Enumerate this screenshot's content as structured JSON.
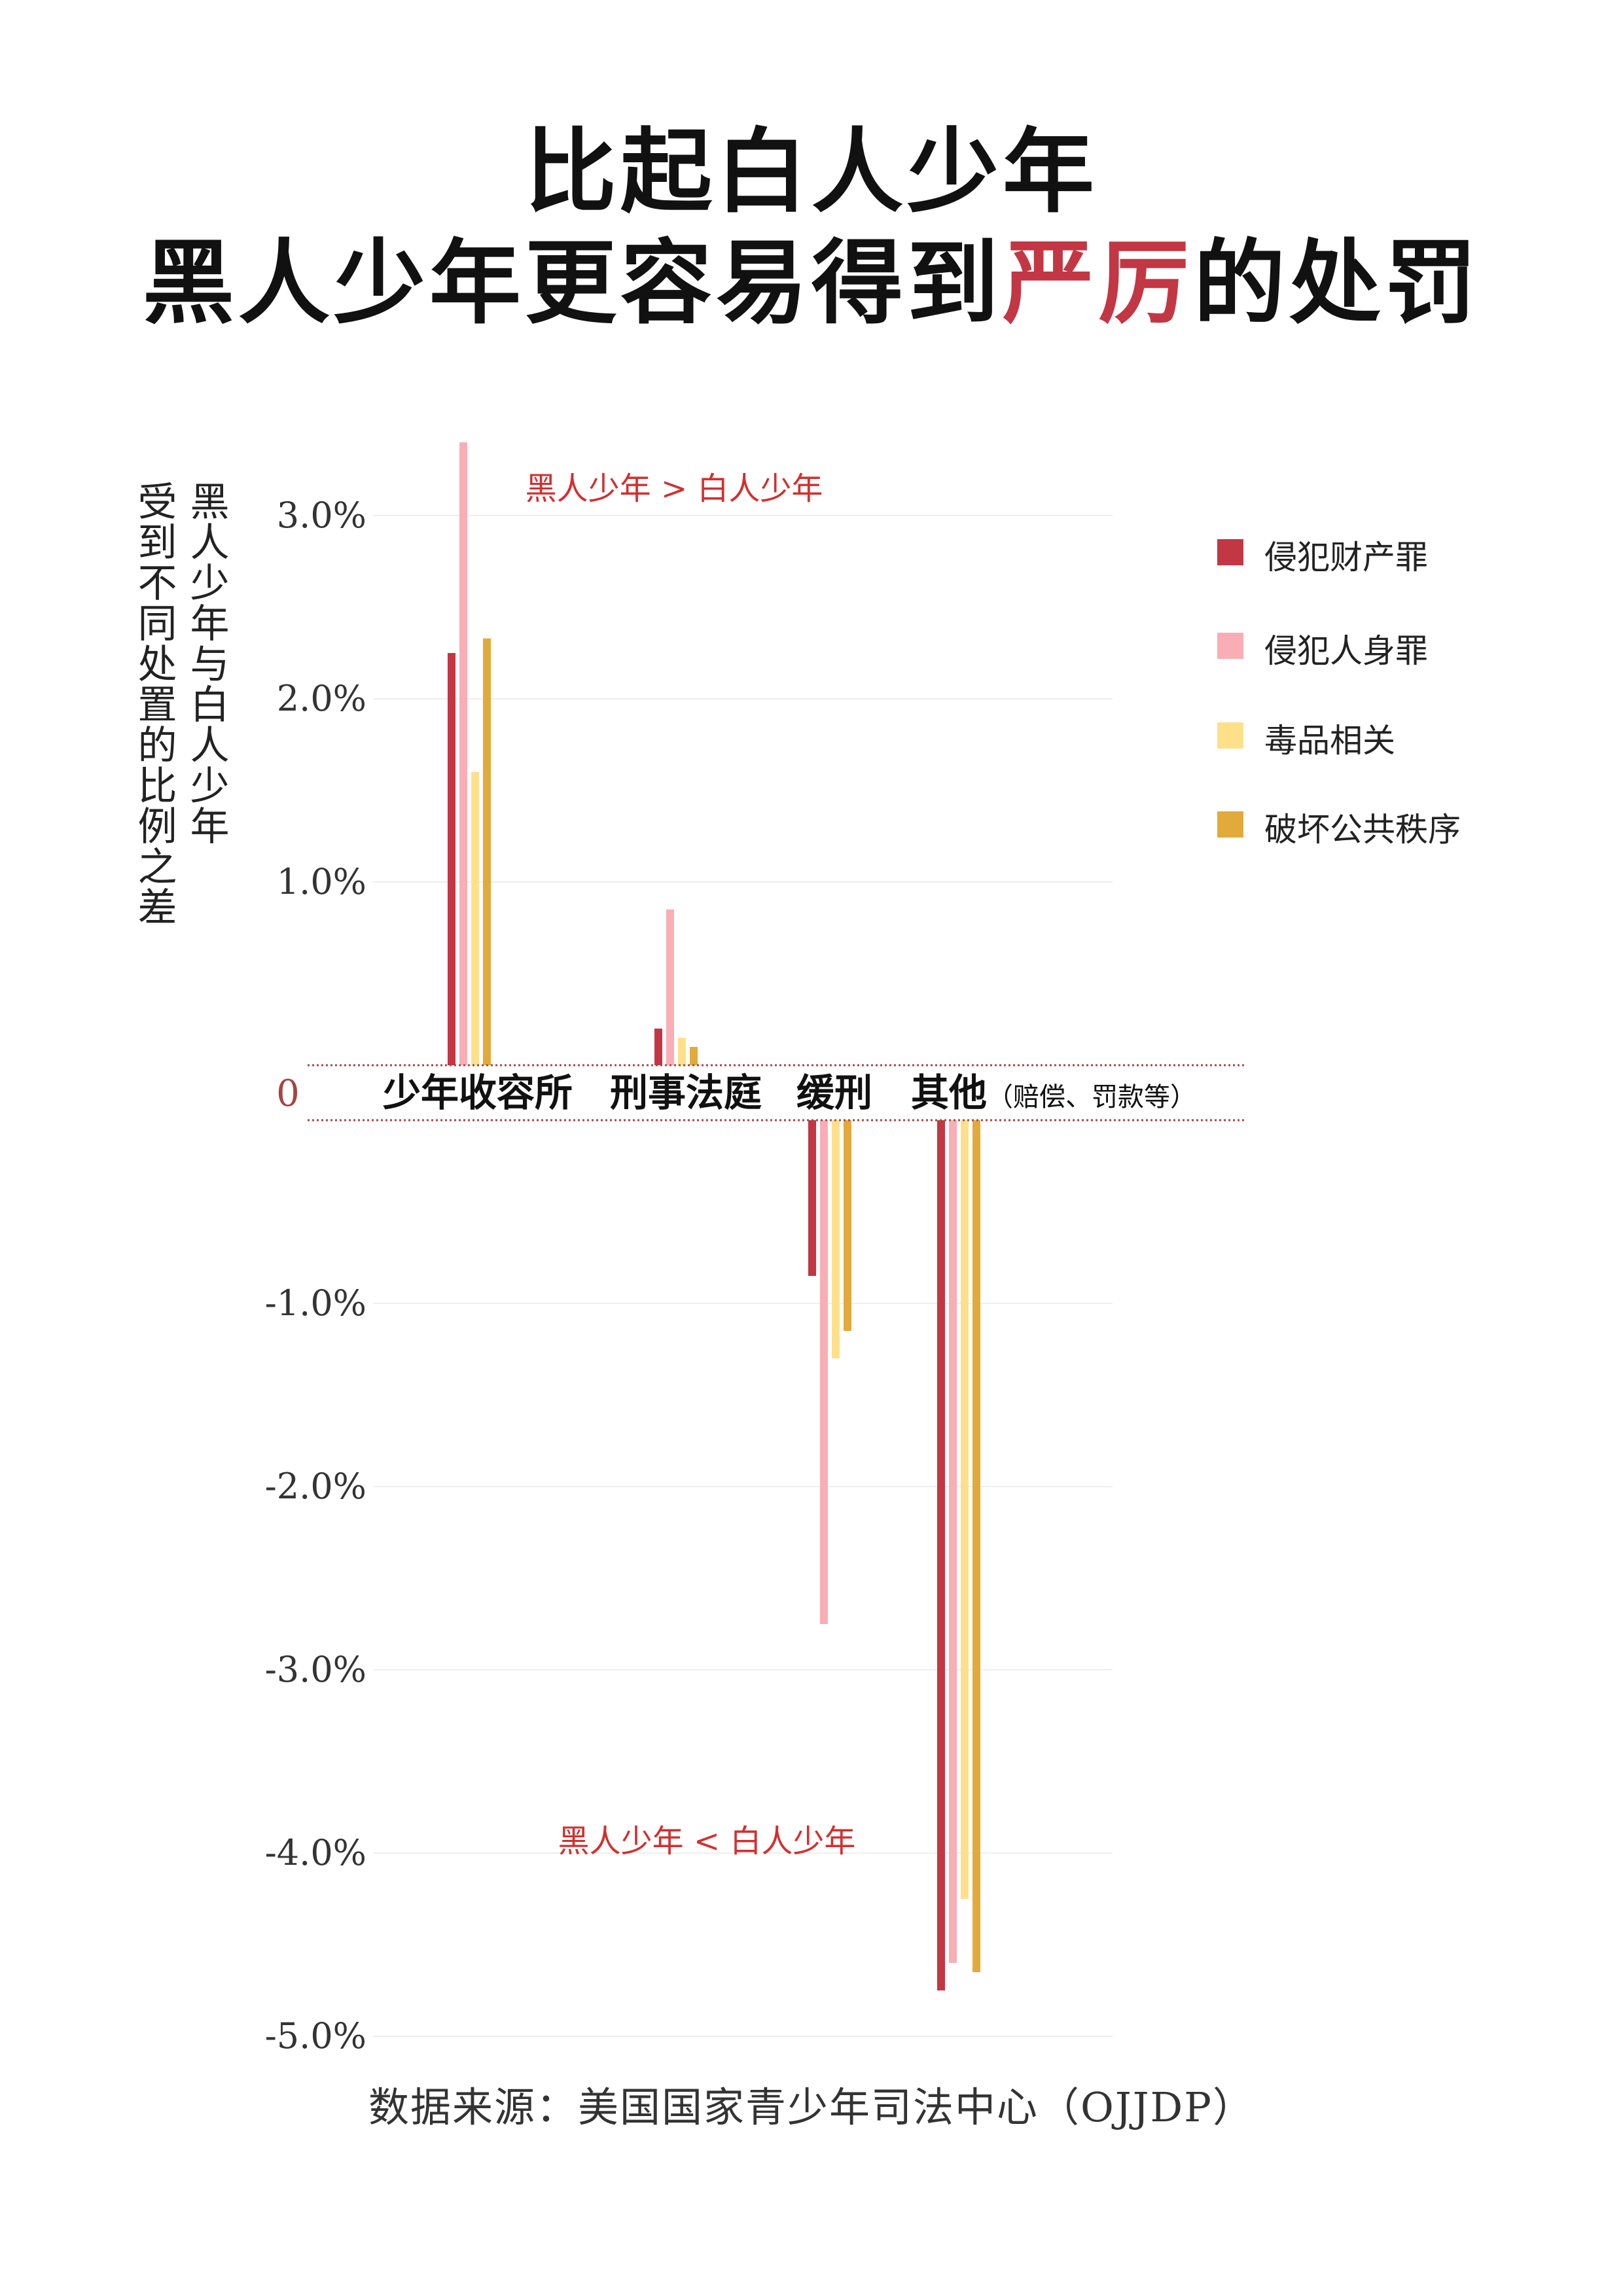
{
  "title": {
    "line1": "比起白人少年",
    "line2_pre": "黑人少年更容易得到",
    "line2_highlight": "严厉",
    "line2_post": "的处罚"
  },
  "ylabel": {
    "line1": "黑人少年与白人少年",
    "line2": "受到不同处置的比例之差"
  },
  "annotations": {
    "above": "黑人少年 > 白人少年",
    "below": "黑人少年 < 白人少年"
  },
  "zero_label": "0",
  "source": "数据来源：美国国家青少年司法中心（OJJDP）",
  "colors": {
    "accent": "#c23743",
    "annotation": "#d32f2f",
    "grid": "#eeeeee",
    "zero_line": "#a64545"
  },
  "chart_data": {
    "type": "bar",
    "categories": [
      "少年收容所",
      "刑事法庭",
      "缓刑",
      "其他"
    ],
    "category_notes": [
      "",
      "",
      "",
      "（赔偿、罚款等）"
    ],
    "ylim": [
      -5.0,
      3.4
    ],
    "yticks": [
      {
        "value": 3.0,
        "label": "3.0%"
      },
      {
        "value": 2.0,
        "label": "2.0%"
      },
      {
        "value": 1.0,
        "label": "1.0%"
      },
      {
        "value": -1.0,
        "label": "-1.0%"
      },
      {
        "value": -2.0,
        "label": "-2.0%"
      },
      {
        "value": -3.0,
        "label": "-3.0%"
      },
      {
        "value": -4.0,
        "label": "-4.0%"
      },
      {
        "value": -5.0,
        "label": "-5.0%"
      }
    ],
    "grid": true,
    "legend_position": "right",
    "series": [
      {
        "name": "侵犯财产罪",
        "color": "#c23743",
        "values": [
          2.25,
          0.2,
          -0.85,
          -4.75
        ]
      },
      {
        "name": "侵犯人身罪",
        "color": "#f9aeb5",
        "values": [
          3.4,
          0.85,
          -2.75,
          -4.6
        ]
      },
      {
        "name": "毒品相关",
        "color": "#ffe08a",
        "values": [
          1.6,
          0.15,
          -1.3,
          -4.25
        ]
      },
      {
        "name": "破坏公共秩序",
        "color": "#e2aa3a",
        "values": [
          2.33,
          0.1,
          -1.15,
          -4.65
        ]
      }
    ]
  }
}
